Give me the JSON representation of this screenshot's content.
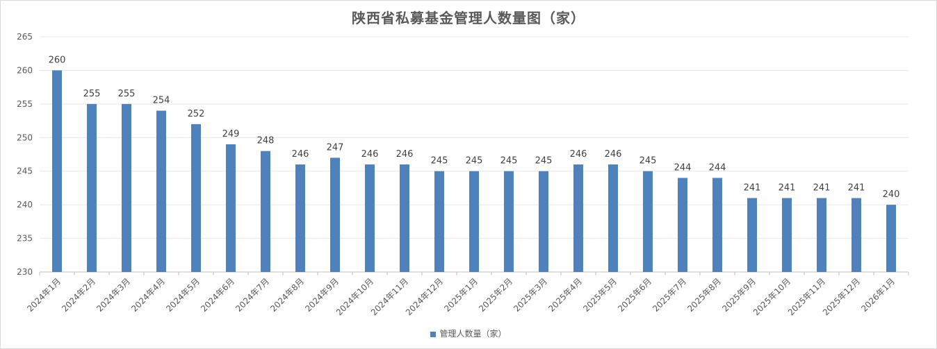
{
  "chart_data": {
    "type": "bar",
    "title": "陕西省私募基金管理人数量图（家）",
    "categories": [
      "2024年1月",
      "2024年2月",
      "2024年3月",
      "2024年4月",
      "2024年5月",
      "2024年6月",
      "2024年7月",
      "2024年8月",
      "2024年9月",
      "2024年10月",
      "2024年11月",
      "2024年12月",
      "2025年1月",
      "2025年2月",
      "2025年3月",
      "2025年4月",
      "2025年5月",
      "2025年6月",
      "2025年7月",
      "2025年8月",
      "2025年9月",
      "2025年10月",
      "2025年11月",
      "2025年12月",
      "2026年1月"
    ],
    "series": [
      {
        "name": "管理人数量（家）",
        "values": [
          260,
          255,
          255,
          254,
          252,
          249,
          248,
          246,
          247,
          246,
          246,
          245,
          245,
          245,
          245,
          246,
          246,
          245,
          244,
          244,
          241,
          241,
          241,
          241,
          240
        ]
      }
    ],
    "ylim": [
      230,
      265
    ],
    "yticks": [
      230,
      235,
      240,
      245,
      250,
      255,
      260,
      265
    ],
    "grid": true,
    "legend": "bottom",
    "xlabel": "",
    "ylabel": "",
    "colors": {
      "bar": "#4f81bd",
      "grid": "#e6e6e6"
    }
  }
}
